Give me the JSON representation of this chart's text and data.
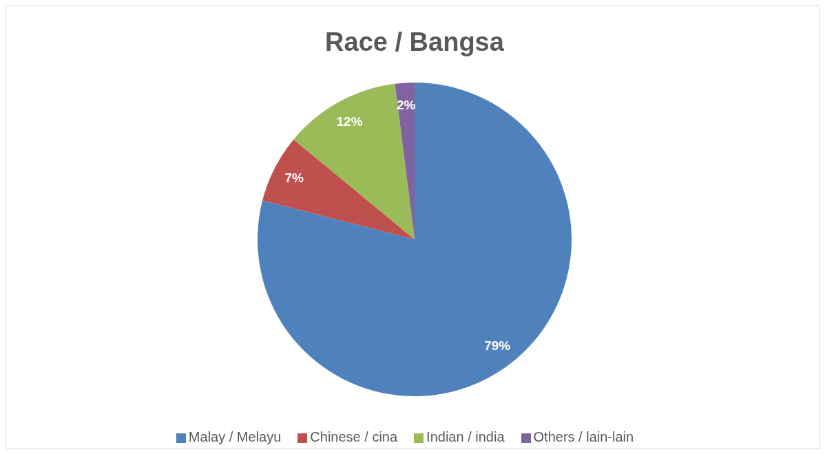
{
  "chart_data": {
    "type": "pie",
    "title": "Race / Bangsa",
    "categories": [
      "Malay / Melayu",
      "Chinese / cina",
      "Indian / india",
      "Others / lain-lain"
    ],
    "values": [
      79,
      7,
      12,
      2
    ],
    "value_labels": [
      "79%",
      "7%",
      "12%",
      "2%"
    ],
    "colors": [
      "#4f81bd",
      "#c0504d",
      "#9bbb59",
      "#8064a2"
    ],
    "legend": "bottom"
  }
}
